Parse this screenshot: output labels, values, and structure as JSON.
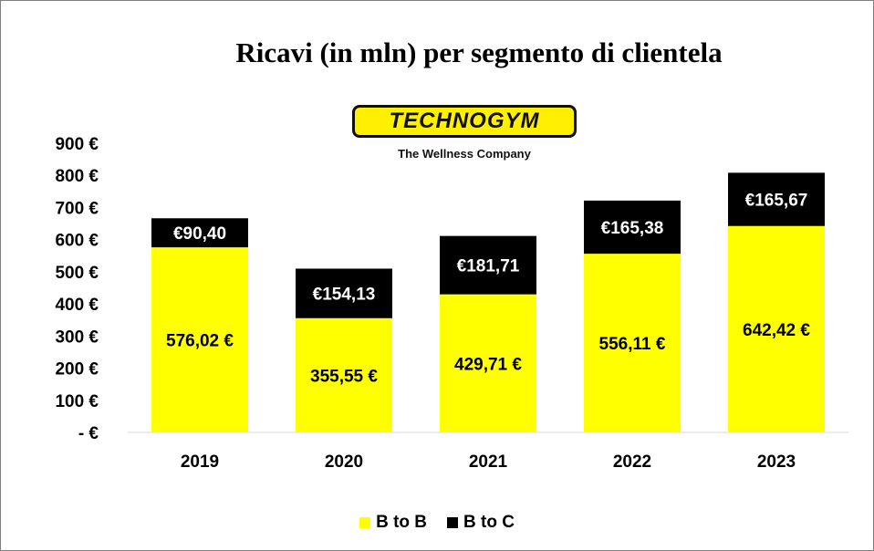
{
  "colors": {
    "b2b": "#ffff00",
    "b2c": "#000000",
    "axis_line": "#d9d9d9"
  },
  "logo": {
    "brand": "TECHNOGYM",
    "tagline": "The Wellness Company"
  },
  "chart_data": {
    "type": "bar",
    "stacked": true,
    "title": "Ricavi (in mln) per segmento di clientela",
    "categories": [
      "2019",
      "2020",
      "2021",
      "2022",
      "2023"
    ],
    "series": [
      {
        "name": "B to B",
        "values": [
          576.02,
          355.55,
          429.71,
          556.11,
          642.42
        ],
        "labels": [
          "576,02 €",
          "355,55 €",
          "429,71 €",
          "556,11 €",
          "642,42 €"
        ]
      },
      {
        "name": "B to C",
        "values": [
          90.4,
          154.13,
          181.71,
          165.38,
          165.67
        ],
        "labels": [
          "€90,40",
          "€154,13",
          "€181,71",
          "€165,38",
          "€165,67"
        ]
      }
    ],
    "ylim": [
      0,
      900
    ],
    "yticks": [
      0,
      100,
      200,
      300,
      400,
      500,
      600,
      700,
      800,
      900
    ],
    "ytick_labels": [
      "- €",
      "100 €",
      "200 €",
      "300 €",
      "400 €",
      "500 €",
      "600 €",
      "700 €",
      "800 €",
      "900 €"
    ],
    "grid": false,
    "legend_position": "bottom"
  }
}
